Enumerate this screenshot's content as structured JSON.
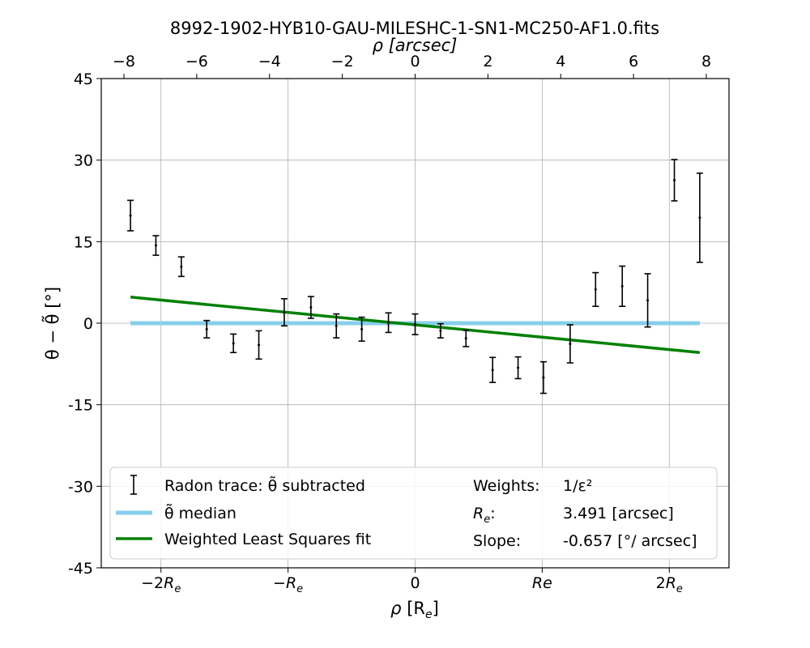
{
  "chart_data": {
    "type": "scatter",
    "title": "8992-1902-HYB10-GAU-MILESHC-1-SN1-MC250-AF1.0.fits",
    "xlabel": "ρ [R",
    "xlabel_sub": "e",
    "xlabel_tail": "]",
    "ylabel": "θ − θ̃ [°]",
    "top_xlabel": "ρ [arcsec]",
    "xlim": [
      -2.47,
      2.47
    ],
    "ylim": [
      -45,
      45
    ],
    "grid": true,
    "legend_position": "bottom",
    "x_ticks": [
      {
        "value": -2,
        "label": "−2R",
        "sub": "e"
      },
      {
        "value": -1,
        "label": "−R",
        "sub": "e"
      },
      {
        "value": 0,
        "label": "0",
        "sub": ""
      },
      {
        "value": 1,
        "label": "Re",
        "sub": ""
      },
      {
        "value": 2,
        "label": "2R",
        "sub": "e"
      }
    ],
    "y_ticks": [
      {
        "value": 45,
        "label": "45"
      },
      {
        "value": 30,
        "label": "30"
      },
      {
        "value": 15,
        "label": "15"
      },
      {
        "value": 0,
        "label": "0"
      },
      {
        "value": -15,
        "label": "-15"
      },
      {
        "value": -30,
        "label": "-30"
      },
      {
        "value": -45,
        "label": "-45"
      }
    ],
    "top_ticks": [
      {
        "value": -8,
        "label": "−8"
      },
      {
        "value": -6,
        "label": "−6"
      },
      {
        "value": -4,
        "label": "−4"
      },
      {
        "value": -2,
        "label": "−2"
      },
      {
        "value": 0,
        "label": "0"
      },
      {
        "value": 2,
        "label": "2"
      },
      {
        "value": 4,
        "label": "4"
      },
      {
        "value": 6,
        "label": "6"
      },
      {
        "value": 8,
        "label": "8"
      }
    ],
    "series": [
      {
        "name": "Radon trace: θ̃ subtracted",
        "color": "#000000",
        "points": [
          {
            "x": -2.24,
            "y": 19.8,
            "err": 2.8
          },
          {
            "x": -2.04,
            "y": 14.3,
            "err": 1.8
          },
          {
            "x": -1.84,
            "y": 10.4,
            "err": 1.8
          },
          {
            "x": -1.64,
            "y": -1.1,
            "err": 1.6
          },
          {
            "x": -1.43,
            "y": -3.7,
            "err": 1.7
          },
          {
            "x": -1.23,
            "y": -4.0,
            "err": 2.6
          },
          {
            "x": -1.03,
            "y": 2.0,
            "err": 2.5
          },
          {
            "x": -0.82,
            "y": 2.9,
            "err": 2.0
          },
          {
            "x": -0.62,
            "y": -0.5,
            "err": 2.2
          },
          {
            "x": -0.42,
            "y": -1.1,
            "err": 2.2
          },
          {
            "x": -0.21,
            "y": 0.1,
            "err": 1.8
          },
          {
            "x": 0.0,
            "y": -0.2,
            "err": 1.9
          },
          {
            "x": 0.2,
            "y": -1.4,
            "err": 1.3
          },
          {
            "x": 0.4,
            "y": -2.8,
            "err": 1.5
          },
          {
            "x": 0.61,
            "y": -8.6,
            "err": 2.3
          },
          {
            "x": 0.81,
            "y": -8.2,
            "err": 2.0
          },
          {
            "x": 1.01,
            "y": -10.0,
            "err": 2.9
          },
          {
            "x": 1.22,
            "y": -3.8,
            "err": 3.5
          },
          {
            "x": 1.42,
            "y": 6.2,
            "err": 3.1
          },
          {
            "x": 1.63,
            "y": 6.8,
            "err": 3.7
          },
          {
            "x": 1.83,
            "y": 4.2,
            "err": 4.9
          },
          {
            "x": 2.04,
            "y": 26.3,
            "err": 3.8
          },
          {
            "x": 2.24,
            "y": 19.4,
            "err": 8.2
          }
        ]
      },
      {
        "name": "θ̃ median",
        "color": "#87ceeb",
        "line": [
          {
            "x": -2.24,
            "y": 0
          },
          {
            "x": 2.24,
            "y": 0
          }
        ]
      },
      {
        "name": "Weighted Least Squares fit",
        "color": "#008000",
        "line": [
          {
            "x": -2.24,
            "y": 4.8
          },
          {
            "x": 2.24,
            "y": -5.4
          }
        ]
      }
    ],
    "annotations": {
      "weights_label": "Weights:",
      "weights_value": "1/ε²",
      "re_label": "R",
      "re_label_sub": "e",
      "re_label_tail": ":",
      "re_value": "3.491 [arcsec]",
      "slope_label": "Slope:",
      "slope_value": "-0.657 [°/ arcsec]"
    }
  }
}
